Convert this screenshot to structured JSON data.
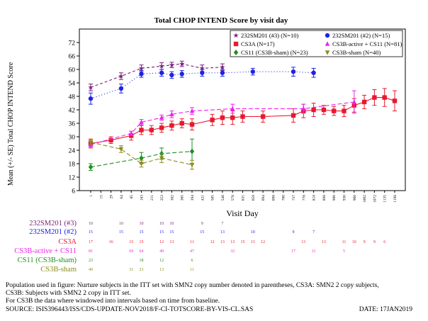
{
  "chart_data": {
    "type": "line",
    "title": "Total CHOP INTEND Score by visit day",
    "xlabel": "Visit Day",
    "ylabel": "Mean (+/- SE) Total CHOP INTEND Score",
    "ylim": [
      6,
      78
    ],
    "yticks": [
      6,
      12,
      18,
      24,
      30,
      36,
      42,
      48,
      54,
      60,
      66,
      72
    ],
    "x_categories": [
      "1",
      "15",
      "29",
      "64",
      "85",
      "183",
      "211",
      "253",
      "302",
      "365",
      "394",
      "421",
      "505",
      "540",
      "578",
      "631",
      "659",
      "694",
      "698",
      "700",
      "737",
      "778",
      "818",
      "898",
      "900",
      "930",
      "960",
      "1002",
      "1072",
      "1135",
      "1198"
    ],
    "legend_position": "top-right",
    "series": [
      {
        "name": "232SM201 (#3) (N=10)",
        "color": "#7b1f7b",
        "marker": "star",
        "dash": "4,3",
        "x": [
          "1",
          "64",
          "183",
          "253",
          "302",
          "365",
          "421",
          "540"
        ],
        "y": [
          52,
          57,
          60.5,
          61.5,
          62,
          62.5,
          60.5,
          61
        ],
        "err": [
          1.5,
          1.5,
          1.5,
          1.5,
          1.2,
          1.2,
          1.5,
          1.5
        ]
      },
      {
        "name": "232SM201 (#2) (N=15)",
        "color": "#1f22e6",
        "marker": "circle",
        "dash": "1,3",
        "x": [
          "1",
          "64",
          "183",
          "253",
          "302",
          "365",
          "421",
          "540",
          "659",
          "737",
          "818"
        ],
        "y": [
          47,
          51.5,
          58,
          58.5,
          57.5,
          58,
          58.5,
          58.5,
          59,
          59,
          58.5
        ],
        "err": [
          2.5,
          2,
          1.5,
          1.5,
          1.5,
          1.5,
          1.5,
          1.5,
          1.5,
          2,
          2
        ]
      },
      {
        "name": "CS3A (N=17)",
        "color": "#e8182d",
        "marker": "square",
        "dash": "",
        "x": [
          "1",
          "29",
          "85",
          "183",
          "211",
          "253",
          "302",
          "365",
          "394",
          "505",
          "540",
          "578",
          "631",
          "694",
          "737",
          "778",
          "818",
          "898",
          "900",
          "930",
          "960",
          "1002",
          "1072",
          "1135",
          "1198"
        ],
        "y": [
          27,
          28.5,
          30.5,
          33,
          33,
          34,
          35,
          36,
          35.5,
          37.5,
          38.5,
          38.5,
          39,
          39,
          39.5,
          41.5,
          42,
          42,
          41.5,
          41.5,
          44,
          45.5,
          47.5,
          47.5,
          46
        ],
        "err": [
          2,
          1.5,
          2,
          2,
          2,
          2,
          2,
          2,
          2.5,
          2.5,
          3,
          3,
          2.5,
          2.5,
          3,
          3,
          3,
          2,
          2,
          2.5,
          3,
          3,
          3.5,
          4,
          4.5
        ]
      },
      {
        "name": "CS3B-active + CS11 (N=81)",
        "color": "#ee22ee",
        "marker": "triangle",
        "dash": "6,3",
        "x": [
          "1",
          "85",
          "183",
          "253",
          "302",
          "394",
          "578",
          "778",
          "960"
        ],
        "y": [
          26.5,
          31.5,
          36.5,
          38.5,
          40,
          41.5,
          42.5,
          42.5,
          45.5
        ],
        "err": [
          1,
          1,
          1.2,
          1.2,
          1.5,
          1.5,
          2,
          2,
          5
        ]
      },
      {
        "name": "CS11 (CS3B-sham) (N=23)",
        "color": "#1f8f1f",
        "marker": "diamond",
        "dash": "6,3",
        "x": [
          "1",
          "183",
          "253",
          "394"
        ],
        "y": [
          16.5,
          20.5,
          22.5,
          23.5
        ],
        "err": [
          1.5,
          2.5,
          2.5,
          5.5
        ]
      },
      {
        "name": "CS3B-sham (N=40)",
        "color": "#8b8b1a",
        "marker": "triangle-down",
        "dash": "6,3",
        "x": [
          "1",
          "64",
          "183",
          "253",
          "394"
        ],
        "y": [
          27.5,
          24.5,
          18,
          20.5,
          17.5
        ],
        "err": [
          1,
          1.5,
          1.5,
          2,
          2
        ]
      }
    ]
  },
  "risk_table": {
    "rows": [
      {
        "label": "232SM201 (#3)",
        "color": "#7b1f7b",
        "values": [
          {
            "x": "1",
            "n": "10"
          },
          {
            "x": "64",
            "n": "10"
          },
          {
            "x": "183",
            "n": "10"
          },
          {
            "x": "253",
            "n": "10"
          },
          {
            "x": "302",
            "n": "10"
          },
          {
            "x": "421",
            "n": "9"
          },
          {
            "x": "540",
            "n": "7"
          }
        ]
      },
      {
        "label": "232SM201 (#2)",
        "color": "#1f22e6",
        "values": [
          {
            "x": "1",
            "n": "15"
          },
          {
            "x": "64",
            "n": "15"
          },
          {
            "x": "183",
            "n": "15"
          },
          {
            "x": "253",
            "n": "15"
          },
          {
            "x": "302",
            "n": "15"
          },
          {
            "x": "421",
            "n": "15"
          },
          {
            "x": "540",
            "n": "13"
          },
          {
            "x": "659",
            "n": "10"
          },
          {
            "x": "737",
            "n": "9"
          },
          {
            "x": "818",
            "n": "7"
          }
        ]
      },
      {
        "label": "CS3A",
        "color": "#e8182d",
        "values": [
          {
            "x": "1",
            "n": "17"
          },
          {
            "x": "29",
            "n": "16"
          },
          {
            "x": "85",
            "n": "15"
          },
          {
            "x": "183",
            "n": "15"
          },
          {
            "x": "253",
            "n": "12"
          },
          {
            "x": "302",
            "n": "13"
          },
          {
            "x": "365",
            "n": ""
          },
          {
            "x": "394",
            "n": "11"
          },
          {
            "x": "505",
            "n": "12"
          },
          {
            "x": "540",
            "n": "13"
          },
          {
            "x": "578",
            "n": "13"
          },
          {
            "x": "631",
            "n": "15"
          },
          {
            "x": "659",
            "n": "13"
          },
          {
            "x": "694",
            "n": "12"
          },
          {
            "x": "778",
            "n": "13"
          },
          {
            "x": "898",
            "n": "13"
          },
          {
            "x": "930",
            "n": "11"
          },
          {
            "x": "960",
            "n": "10"
          },
          {
            "x": "1002",
            "n": "9"
          },
          {
            "x": "1072",
            "n": "9"
          },
          {
            "x": "1135",
            "n": "6"
          }
        ]
      },
      {
        "label": "CS3B-active + CS11",
        "color": "#ee22ee",
        "values": [
          {
            "x": "1",
            "n": "81"
          },
          {
            "x": "85",
            "n": "69"
          },
          {
            "x": "183",
            "n": "64"
          },
          {
            "x": "253",
            "n": "49"
          },
          {
            "x": "394",
            "n": "47"
          },
          {
            "x": "578",
            "n": "32"
          },
          {
            "x": "737",
            "n": "17"
          },
          {
            "x": "818",
            "n": "11"
          },
          {
            "x": "930",
            "n": "5"
          }
        ]
      },
      {
        "label": "CS11 (CS3B-sham)",
        "color": "#1f8f1f",
        "values": [
          {
            "x": "1",
            "n": "23"
          },
          {
            "x": "183",
            "n": "18"
          },
          {
            "x": "253",
            "n": "12"
          },
          {
            "x": "394",
            "n": "6"
          }
        ]
      },
      {
        "label": "CS3B-sham",
        "color": "#8b8b1a",
        "values": [
          {
            "x": "1",
            "n": "40"
          },
          {
            "x": "85",
            "n": "31"
          },
          {
            "x": "183",
            "n": "23"
          },
          {
            "x": "253",
            "n": "13"
          },
          {
            "x": "394",
            "n": "11"
          }
        ]
      }
    ]
  },
  "footnotes": [
    "Population used in figure: Nurture subjects in the ITT set with SMN2 copy number denoted in parentheses, CS3A: SMN2 2 copy subjects,",
    "CS3B: Subjects with SMN2 2 copy in ITT set.",
    "For CS3B the data where windowed into intervals based on time from baseline."
  ],
  "source": "SOURCE: ISIS396443/ISS/CDS-UPDATE-NOV2018/F-CI-TOTSCORE-BY-VIS-CL.SAS",
  "date": "DATE: 17JAN2019"
}
